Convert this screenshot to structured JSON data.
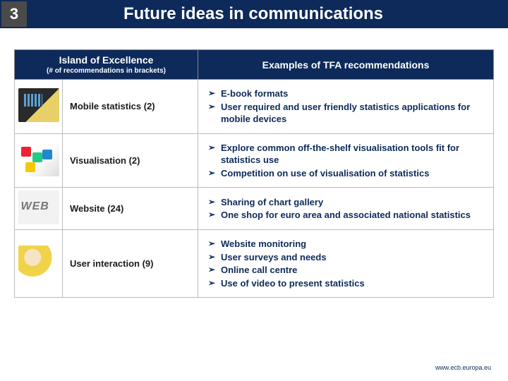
{
  "slide_number": "3",
  "title": "Future ideas in communications",
  "colors": {
    "header_bg": "#0d2a5a",
    "header_text": "#ffffff",
    "number_bg": "#4a4a4a",
    "cell_border": "#bbbbbb",
    "bullet_text": "#0d2a5a"
  },
  "table": {
    "header_left": "Island of Excellence",
    "header_left_note": "(# of recommendations in brackets)",
    "header_right": "Examples of TFA recommendations",
    "rows": [
      {
        "icon": "mobile",
        "label": "Mobile statistics (2)",
        "items": [
          "E-book formats",
          "User required and user friendly statistics applications for mobile devices"
        ]
      },
      {
        "icon": "visualisation",
        "label": "Visualisation (2)",
        "items": [
          "Explore common off-the-shelf visualisation tools fit for statistics use",
          "Competition on use of visualisation of statistics"
        ]
      },
      {
        "icon": "web",
        "label": "Website (24)",
        "items": [
          "Sharing of chart gallery",
          "One shop for euro area and associated national statistics"
        ]
      },
      {
        "icon": "user",
        "label": "User interaction (9)",
        "items": [
          "Website monitoring",
          "User surveys and needs",
          "Online call centre",
          "Use of video to present statistics"
        ]
      }
    ]
  },
  "footer": "www.ecb.europa.eu"
}
